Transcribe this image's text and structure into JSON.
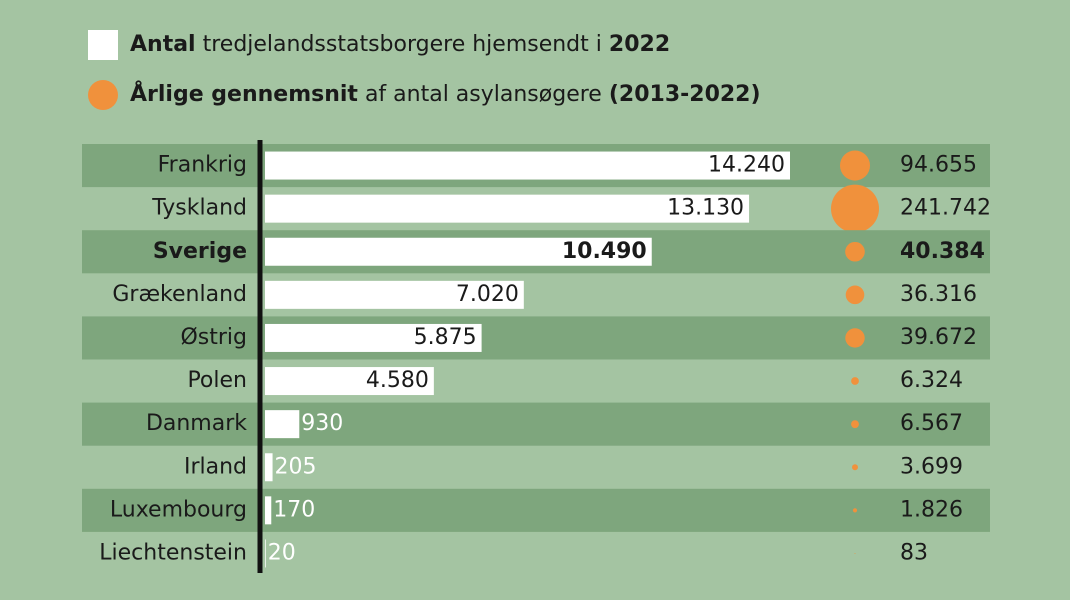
{
  "chart_data": {
    "type": "bar",
    "orientation": "horizontal",
    "categories": [
      "Frankrig",
      "Tyskland",
      "Sverige",
      "Grækenland",
      "Østrig",
      "Polen",
      "Danmark",
      "Irland",
      "Luxembourg",
      "Liechtenstein"
    ],
    "highlight_index": 2,
    "xlim": [
      0,
      14240
    ],
    "series": [
      {
        "name_parts": [
          {
            "text": "Antal",
            "bold": true
          },
          {
            "text": "tredjelandsstatsborgere hjemsendt i",
            "bold": false
          },
          {
            "text": "2022",
            "bold": true
          }
        ],
        "marker": "square",
        "color": "#ffffff",
        "values": [
          14240,
          13130,
          10490,
          7020,
          5875,
          4580,
          930,
          205,
          170,
          20
        ],
        "value_labels": [
          "14.240",
          "13.130",
          "10.490",
          "7.020",
          "5.875",
          "4.580",
          "930",
          "205",
          "170",
          "20"
        ]
      },
      {
        "name_parts": [
          {
            "text": "Årlige gennemsnit",
            "bold": true
          },
          {
            "text": "af antal asylansøgere",
            "bold": false
          },
          {
            "text": "(2013-2022)",
            "bold": true
          }
        ],
        "marker": "circle",
        "color": "#f0913c",
        "values": [
          94655,
          241742,
          40384,
          36316,
          39672,
          6324,
          6567,
          3699,
          1826,
          83
        ],
        "value_labels": [
          "94.655",
          "241.742",
          "40.384",
          "36.316",
          "39.672",
          "6.324",
          "6.567",
          "3.699",
          "1.826",
          "83"
        ]
      }
    ]
  }
}
